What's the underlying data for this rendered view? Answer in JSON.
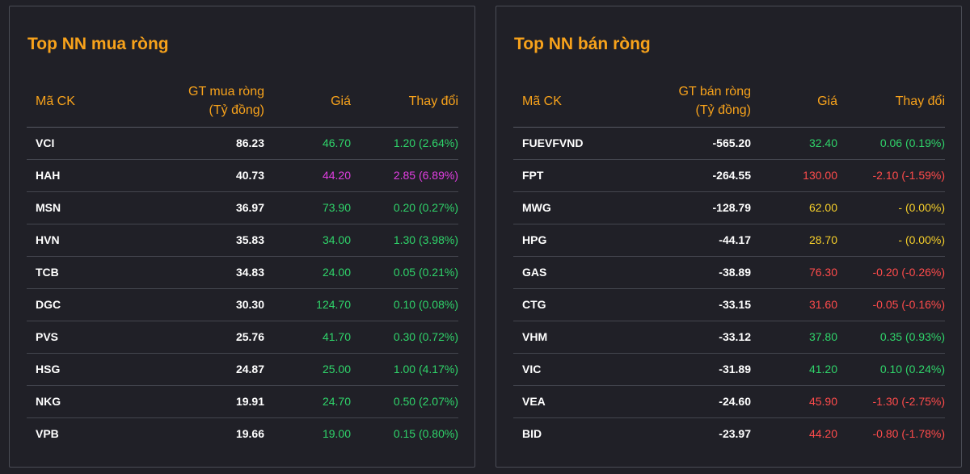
{
  "colors": {
    "up": "#2fd46a",
    "down": "#ff4b4b",
    "ref": "#f6cf2a",
    "ceiling": "#e23ee2",
    "header": "#f7a21b",
    "text": "#ffffff"
  },
  "buy": {
    "title": "Top NN mua ròng",
    "headers": {
      "code": "Mã CK",
      "value_line1": "GT mua ròng",
      "value_line2": "(Tỷ đồng)",
      "price": "Giá",
      "change": "Thay đổi"
    },
    "rows": [
      {
        "code": "VCI",
        "value": "86.23",
        "price": "46.70",
        "change": "1.20 (2.64%)",
        "status": "up"
      },
      {
        "code": "HAH",
        "value": "40.73",
        "price": "44.20",
        "change": "2.85 (6.89%)",
        "status": "ceiling"
      },
      {
        "code": "MSN",
        "value": "36.97",
        "price": "73.90",
        "change": "0.20 (0.27%)",
        "status": "up"
      },
      {
        "code": "HVN",
        "value": "35.83",
        "price": "34.00",
        "change": "1.30 (3.98%)",
        "status": "up"
      },
      {
        "code": "TCB",
        "value": "34.83",
        "price": "24.00",
        "change": "0.05 (0.21%)",
        "status": "up"
      },
      {
        "code": "DGC",
        "value": "30.30",
        "price": "124.70",
        "change": "0.10 (0.08%)",
        "status": "up"
      },
      {
        "code": "PVS",
        "value": "25.76",
        "price": "41.70",
        "change": "0.30 (0.72%)",
        "status": "up"
      },
      {
        "code": "HSG",
        "value": "24.87",
        "price": "25.00",
        "change": "1.00 (4.17%)",
        "status": "up"
      },
      {
        "code": "NKG",
        "value": "19.91",
        "price": "24.70",
        "change": "0.50 (2.07%)",
        "status": "up"
      },
      {
        "code": "VPB",
        "value": "19.66",
        "price": "19.00",
        "change": "0.15 (0.80%)",
        "status": "up"
      }
    ]
  },
  "sell": {
    "title": "Top NN bán ròng",
    "headers": {
      "code": "Mã CK",
      "value_line1": "GT bán ròng",
      "value_line2": "(Tỷ đồng)",
      "price": "Giá",
      "change": "Thay đổi"
    },
    "rows": [
      {
        "code": "FUEVFVND",
        "value": "-565.20",
        "price": "32.40",
        "change": "0.06 (0.19%)",
        "status": "up"
      },
      {
        "code": "FPT",
        "value": "-264.55",
        "price": "130.00",
        "change": "-2.10 (-1.59%)",
        "status": "down"
      },
      {
        "code": "MWG",
        "value": "-128.79",
        "price": "62.00",
        "change": "- (0.00%)",
        "status": "ref"
      },
      {
        "code": "HPG",
        "value": "-44.17",
        "price": "28.70",
        "change": "- (0.00%)",
        "status": "ref"
      },
      {
        "code": "GAS",
        "value": "-38.89",
        "price": "76.30",
        "change": "-0.20 (-0.26%)",
        "status": "down"
      },
      {
        "code": "CTG",
        "value": "-33.15",
        "price": "31.60",
        "change": "-0.05 (-0.16%)",
        "status": "down"
      },
      {
        "code": "VHM",
        "value": "-33.12",
        "price": "37.80",
        "change": "0.35 (0.93%)",
        "status": "up"
      },
      {
        "code": "VIC",
        "value": "-31.89",
        "price": "41.20",
        "change": "0.10 (0.24%)",
        "status": "up"
      },
      {
        "code": "VEA",
        "value": "-24.60",
        "price": "45.90",
        "change": "-1.30 (-2.75%)",
        "status": "down"
      },
      {
        "code": "BID",
        "value": "-23.97",
        "price": "44.20",
        "change": "-0.80 (-1.78%)",
        "status": "down"
      }
    ]
  }
}
